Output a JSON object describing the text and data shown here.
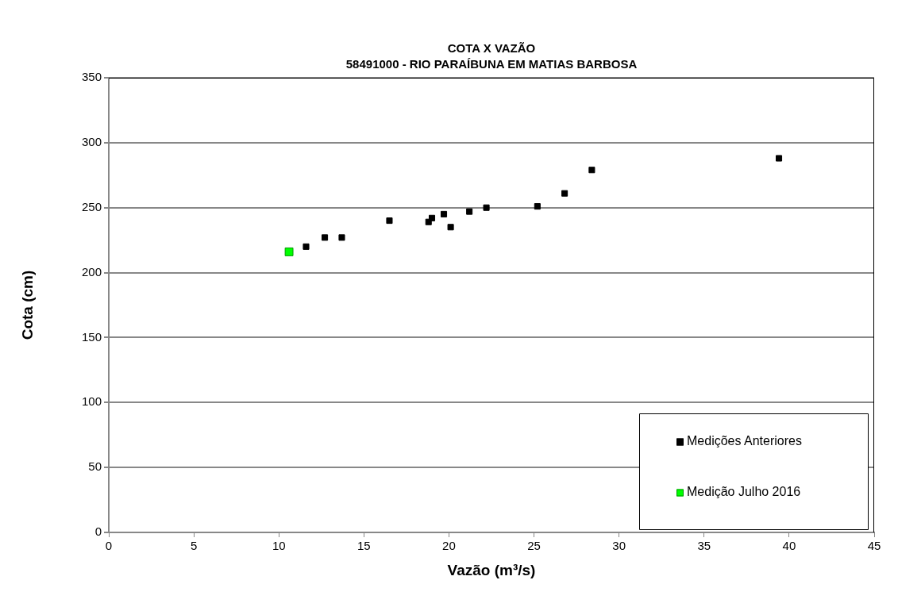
{
  "chart_data": {
    "type": "scatter",
    "title": "COTA X VAZÃO\n58491000 - RIO PARAÍBUNA EM MATIAS BARBOSA",
    "xlabel": "Vazão (m³/s)",
    "ylabel": "Cota (cm)",
    "xlim": [
      0,
      45
    ],
    "xticks": [
      0,
      5,
      10,
      15,
      20,
      25,
      30,
      35,
      40,
      45
    ],
    "ylim": [
      0,
      350
    ],
    "yticks": [
      0,
      50,
      100,
      150,
      200,
      250,
      300,
      350
    ],
    "grid": "y",
    "legend": "bottom right",
    "marker": "square",
    "series": [
      {
        "name": "Medições Anteriores",
        "color": "#000000",
        "x": [
          11.6,
          12.7,
          13.7,
          16.5,
          18.8,
          19.0,
          19.7,
          20.1,
          21.2,
          22.2,
          25.2,
          26.8,
          28.4,
          39.4
        ],
        "values": [
          220,
          227,
          227,
          240,
          239,
          242,
          245,
          235,
          247,
          250,
          251,
          261,
          279,
          288
        ]
      },
      {
        "name": "Medição Julho 2016",
        "color": "#00ff00",
        "x": [
          10.6
        ],
        "values": [
          216
        ]
      }
    ]
  }
}
